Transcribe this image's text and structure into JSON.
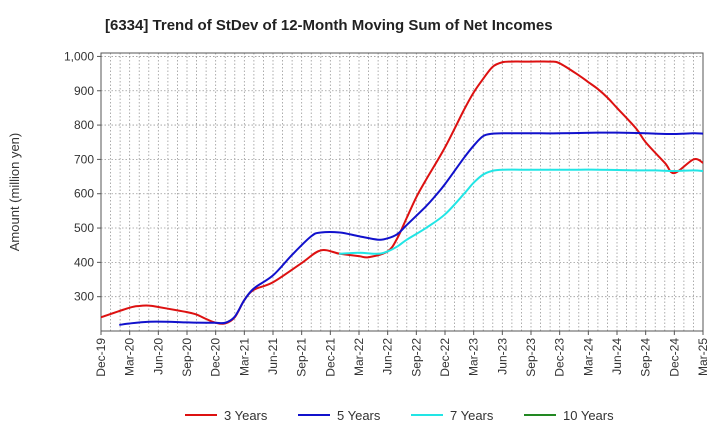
{
  "chart_data": {
    "type": "line",
    "title": "[6334]  Trend of StDev of 12-Month Moving Sum of Net Incomes",
    "xlabel": "",
    "ylabel": "Amount (million yen)",
    "ylim": [
      200,
      1010
    ],
    "yticks": [
      300,
      400,
      500,
      600,
      700,
      800,
      900,
      1000
    ],
    "ytick_labels": [
      "300",
      "400",
      "500",
      "600",
      "700",
      "800",
      "900",
      "1,000"
    ],
    "xlim": [
      0,
      63
    ],
    "xtick_labels": [
      "Dec-19",
      "Mar-20",
      "Jun-20",
      "Sep-20",
      "Dec-20",
      "Mar-21",
      "Jun-21",
      "Sep-21",
      "Dec-21",
      "Mar-22",
      "Jun-22",
      "Sep-22",
      "Dec-22",
      "Mar-23",
      "Jun-23",
      "Sep-23",
      "Dec-23",
      "Mar-24",
      "Jun-24",
      "Sep-24",
      "Dec-24",
      "Mar-25"
    ],
    "grid": true,
    "legend_position": "bottom",
    "series": [
      {
        "name": "3 Years",
        "color": "#dd1111",
        "x": [
          0,
          3,
          4,
          5,
          6,
          8,
          9,
          10,
          11,
          12,
          13,
          14,
          15,
          16,
          18,
          21,
          23,
          25,
          27,
          28,
          30,
          31,
          32,
          33,
          34,
          36,
          38,
          39,
          40,
          41,
          42,
          43,
          44,
          45,
          47,
          48,
          50,
          51,
          52,
          53,
          54,
          56,
          57,
          59,
          60,
          62,
          63
        ],
        "y": [
          240,
          268,
          273,
          274,
          270,
          260,
          255,
          248,
          235,
          224,
          222,
          240,
          290,
          320,
          342,
          398,
          435,
          425,
          418,
          415,
          432,
          470,
          530,
          590,
          640,
          735,
          845,
          895,
          935,
          970,
          983,
          985,
          985,
          985,
          985,
          980,
          945,
          925,
          905,
          880,
          850,
          790,
          750,
          690,
          660,
          700,
          690
        ]
      },
      {
        "name": "5 Years",
        "color": "#1111cc",
        "x": [
          2,
          3,
          5,
          7,
          9,
          11,
          12,
          13,
          14,
          15,
          16,
          18,
          20,
          22,
          23,
          25,
          27,
          29,
          30,
          31,
          32,
          34,
          35,
          36,
          38,
          39,
          40,
          41,
          42,
          44,
          46,
          48,
          50,
          52,
          54,
          56,
          58,
          60,
          62,
          63
        ],
        "y": [
          218,
          222,
          227,
          227,
          225,
          224,
          224,
          224,
          242,
          290,
          324,
          362,
          422,
          476,
          487,
          487,
          476,
          466,
          470,
          482,
          509,
          563,
          594,
          628,
          705,
          740,
          768,
          775,
          776,
          776,
          776,
          776,
          777,
          778,
          778,
          777,
          775,
          774,
          776,
          775
        ]
      },
      {
        "name": "7 Years",
        "color": "#22e5e5",
        "x": [
          25,
          27,
          29,
          30,
          31,
          32,
          34,
          36,
          38,
          39,
          40,
          41,
          42,
          44,
          46,
          48,
          50,
          52,
          54,
          56,
          58,
          60,
          62,
          63
        ],
        "y": [
          425,
          428,
          425,
          432,
          446,
          466,
          500,
          540,
          600,
          632,
          656,
          667,
          670,
          670,
          670,
          670,
          670,
          670,
          669,
          668,
          668,
          666,
          668,
          666
        ]
      },
      {
        "name": "10 Years",
        "color": "#228822",
        "x": [],
        "y": []
      }
    ]
  }
}
